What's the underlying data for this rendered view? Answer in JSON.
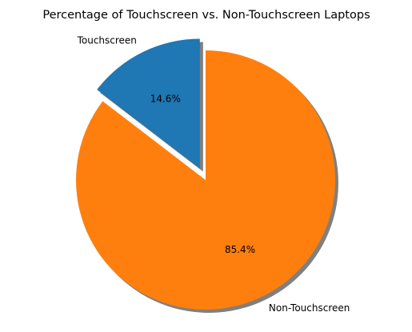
{
  "chart_data": {
    "type": "pie",
    "title": "Percentage of Touchscreen vs. Non-Touchscreen Laptops",
    "slices": [
      {
        "label": "Touchscreen",
        "value": 14.6,
        "pct_label": "14.6%",
        "color": "#1f77b4",
        "exploded": true
      },
      {
        "label": "Non-Touchscreen",
        "value": 85.4,
        "pct_label": "85.4%",
        "color": "#ff7f0e",
        "exploded": false
      }
    ],
    "start_angle_deg": 90,
    "direction": "counterclockwise",
    "shadow": true,
    "shadow_color": "#7f7f7f"
  }
}
